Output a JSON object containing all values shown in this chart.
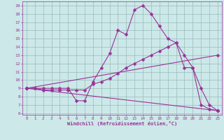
{
  "xlabel": "Windchill (Refroidissement éolien,°C)",
  "bg_color": "#cce8e8",
  "line_color": "#993399",
  "grid_color": "#99bbbb",
  "xlim": [
    -0.5,
    23.5
  ],
  "ylim": [
    5.8,
    19.5
  ],
  "xticks": [
    0,
    1,
    2,
    3,
    4,
    5,
    6,
    7,
    8,
    9,
    10,
    11,
    12,
    13,
    14,
    15,
    16,
    17,
    18,
    19,
    20,
    21,
    22,
    23
  ],
  "yticks": [
    6,
    7,
    8,
    9,
    10,
    11,
    12,
    13,
    14,
    15,
    16,
    17,
    18,
    19
  ],
  "line1_x": [
    0,
    1,
    2,
    3,
    4,
    5,
    6,
    7,
    8,
    9,
    10,
    11,
    12,
    13,
    14,
    15,
    16,
    17,
    18,
    19,
    20,
    21,
    22,
    23
  ],
  "line1_y": [
    9,
    9,
    9,
    9,
    9,
    9,
    7.5,
    7.5,
    9.8,
    11.5,
    13.2,
    16.0,
    15.5,
    18.5,
    19.0,
    18.0,
    16.5,
    15.0,
    14.5,
    13.0,
    11.5,
    7.0,
    6.5,
    6.3
  ],
  "line2_x": [
    0,
    1,
    2,
    3,
    4,
    5,
    6,
    7,
    8,
    9,
    10,
    11,
    12,
    13,
    14,
    15,
    16,
    17,
    18,
    19,
    20,
    21,
    22,
    23
  ],
  "line2_y": [
    9,
    9,
    8.8,
    8.8,
    8.8,
    8.8,
    8.8,
    8.8,
    9.5,
    9.8,
    10.2,
    10.8,
    11.5,
    12.0,
    12.5,
    13.0,
    13.5,
    14.0,
    14.5,
    11.5,
    11.5,
    9.0,
    7.0,
    6.3
  ],
  "line3_x": [
    0,
    23
  ],
  "line3_y": [
    9,
    6.3
  ],
  "line4_x": [
    0,
    23
  ],
  "line4_y": [
    9,
    13.0
  ],
  "markersize": 2.5,
  "linewidth": 0.8
}
